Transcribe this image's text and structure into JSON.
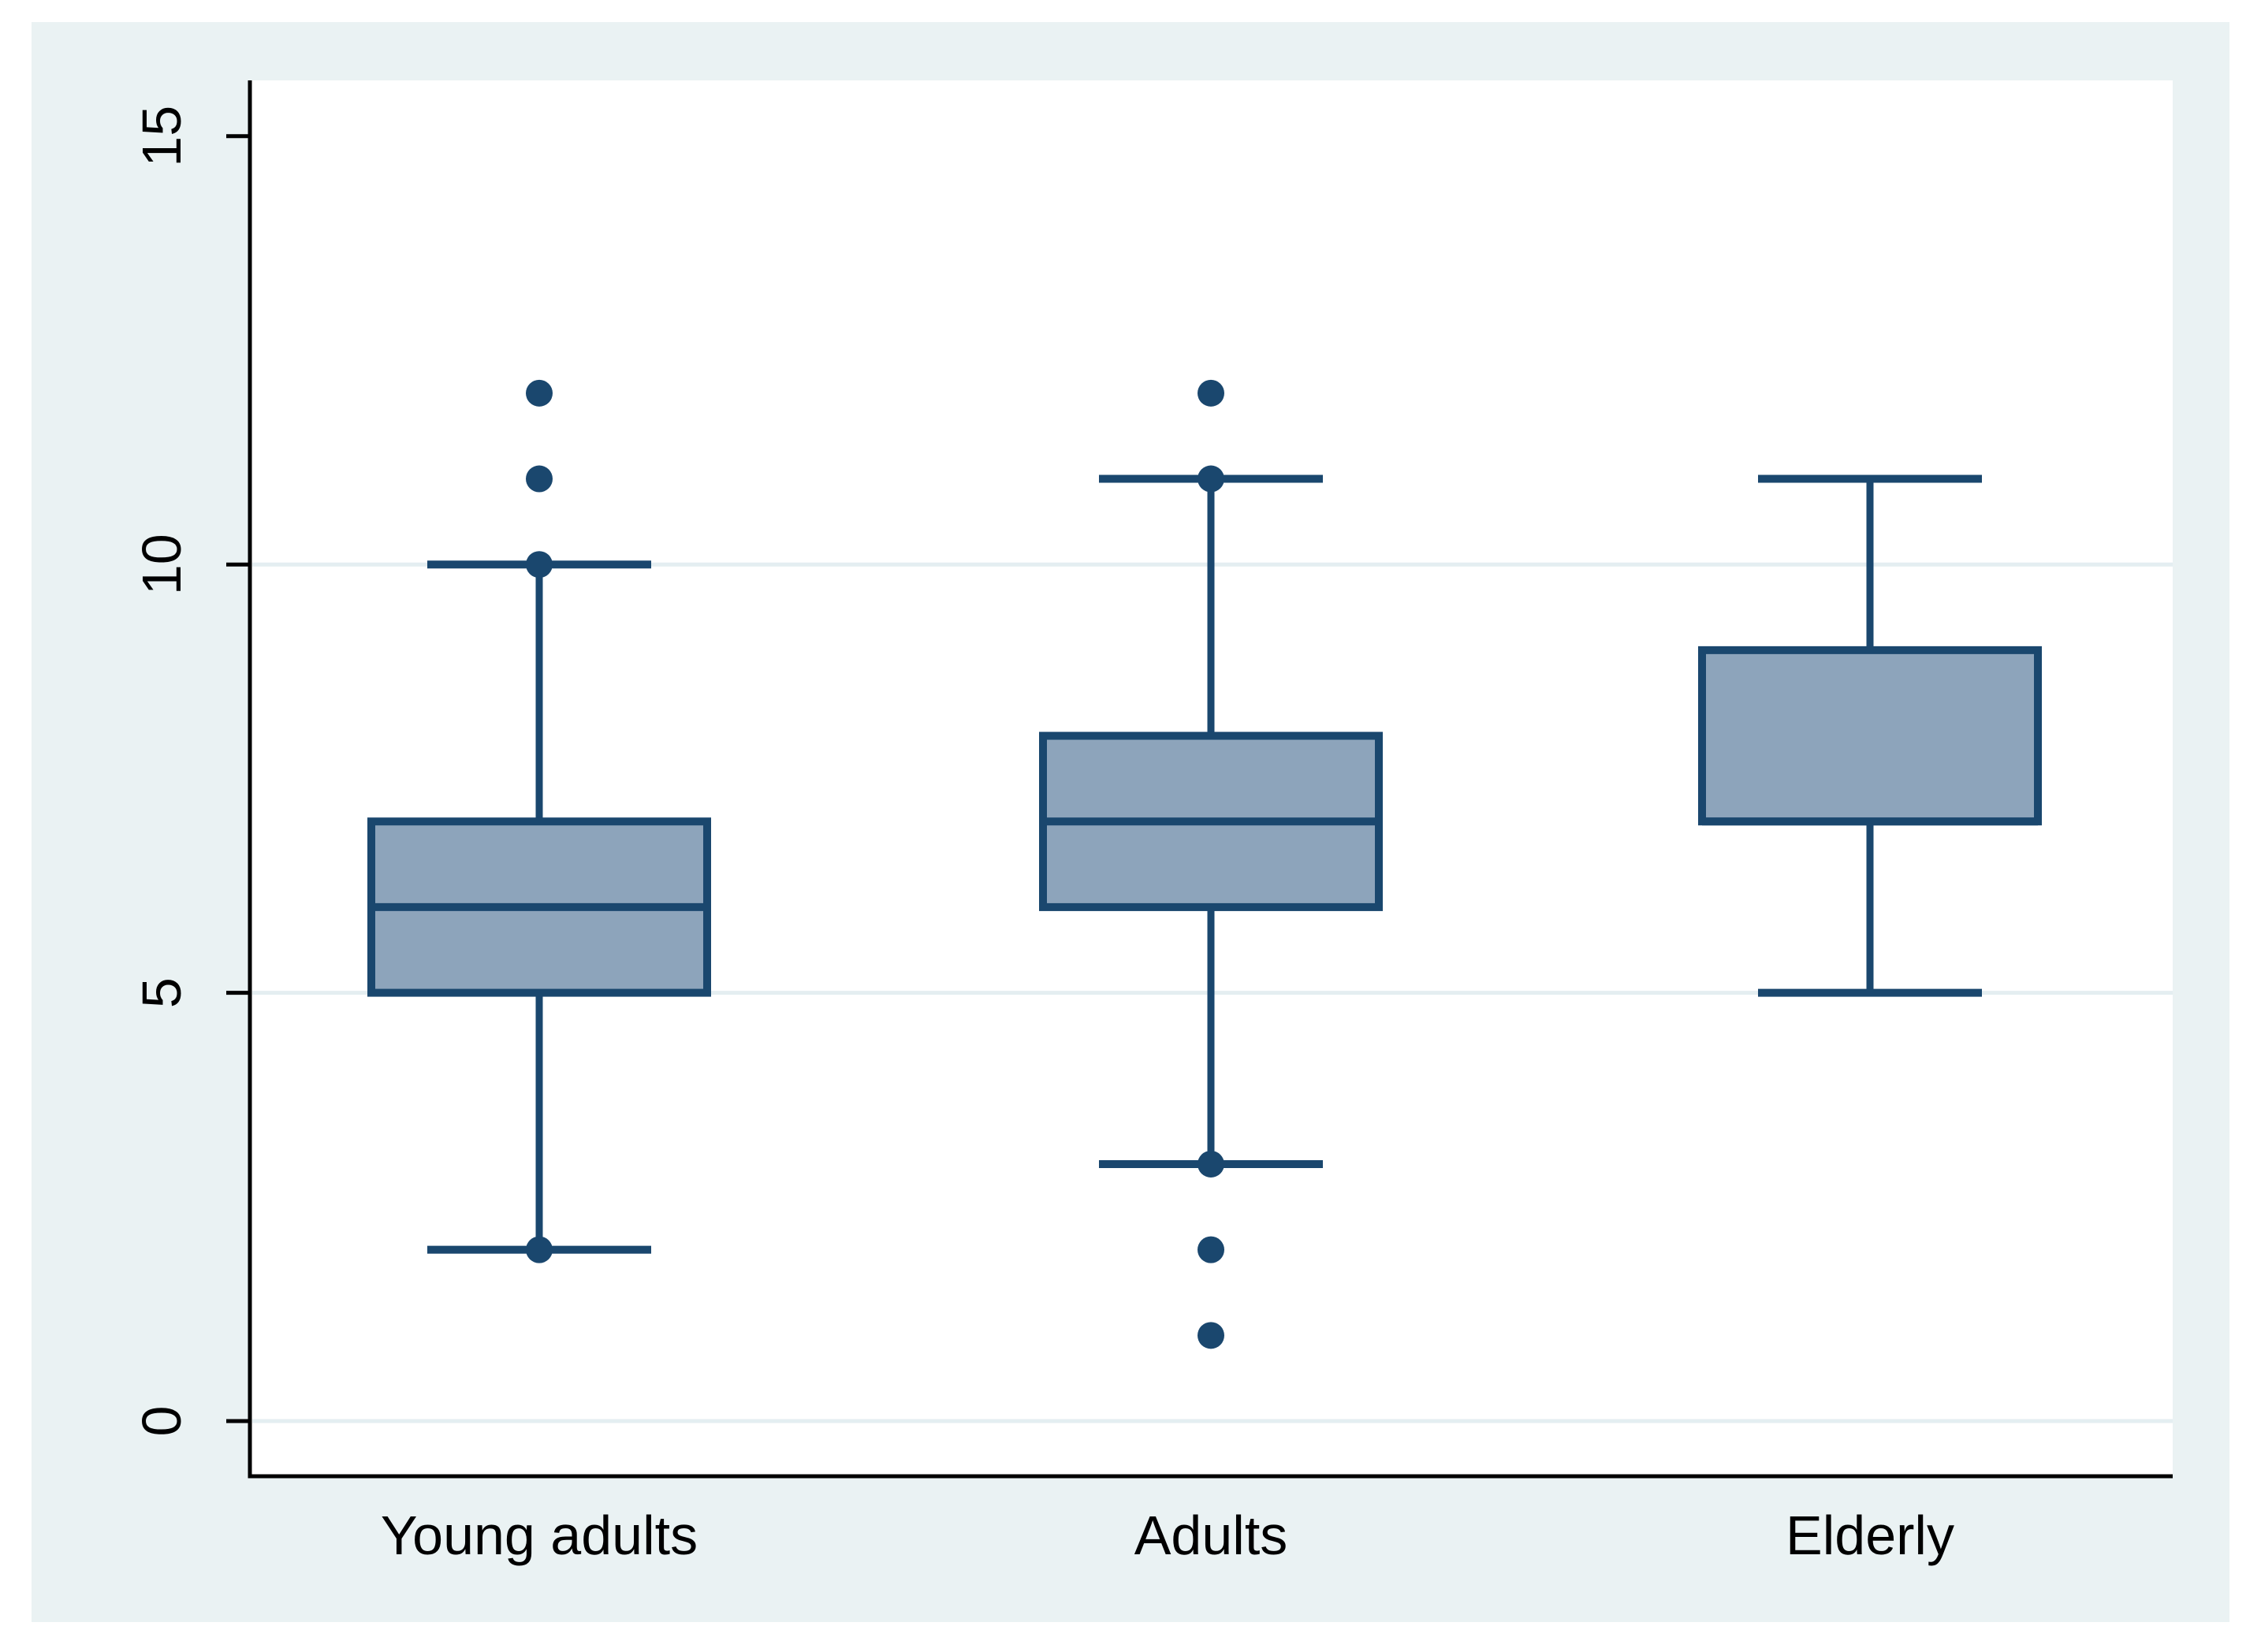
{
  "chart_data": {
    "type": "box",
    "title": "",
    "xlabel": "",
    "ylabel": "",
    "categories": [
      "Young adults",
      "Adults",
      "Elderly"
    ],
    "y_ticks": [
      0,
      5,
      10,
      15
    ],
    "grid_values": [
      0,
      5,
      10
    ],
    "ylim": [
      -0.65,
      15.65
    ],
    "legend": "none",
    "series": [
      {
        "category": "Young adults",
        "q1": 5,
        "median": 6,
        "q3": 7,
        "whisker_low": 2,
        "whisker_high": 10,
        "cap_dot_low": true,
        "cap_dot_high": true,
        "outliers": [
          11,
          12
        ]
      },
      {
        "category": "Adults",
        "q1": 6,
        "median": 7,
        "q3": 8,
        "whisker_low": 3,
        "whisker_high": 11,
        "cap_dot_low": true,
        "cap_dot_high": true,
        "outliers": [
          1,
          2,
          12
        ]
      },
      {
        "category": "Elderly",
        "q1": 7,
        "median": 7,
        "q3": 9,
        "whisker_low": 5,
        "whisker_high": 11,
        "cap_dot_low": false,
        "cap_dot_high": false,
        "outliers": []
      }
    ],
    "colors": {
      "figure_background": "#eaf2f3",
      "plot_background": "#ffffff",
      "grid": "#e4eef1",
      "axis": "#000000",
      "box_fill": "#8da4bb",
      "box_stroke": "#1a476e",
      "marker": "#1a476e",
      "text": "#000000"
    }
  }
}
